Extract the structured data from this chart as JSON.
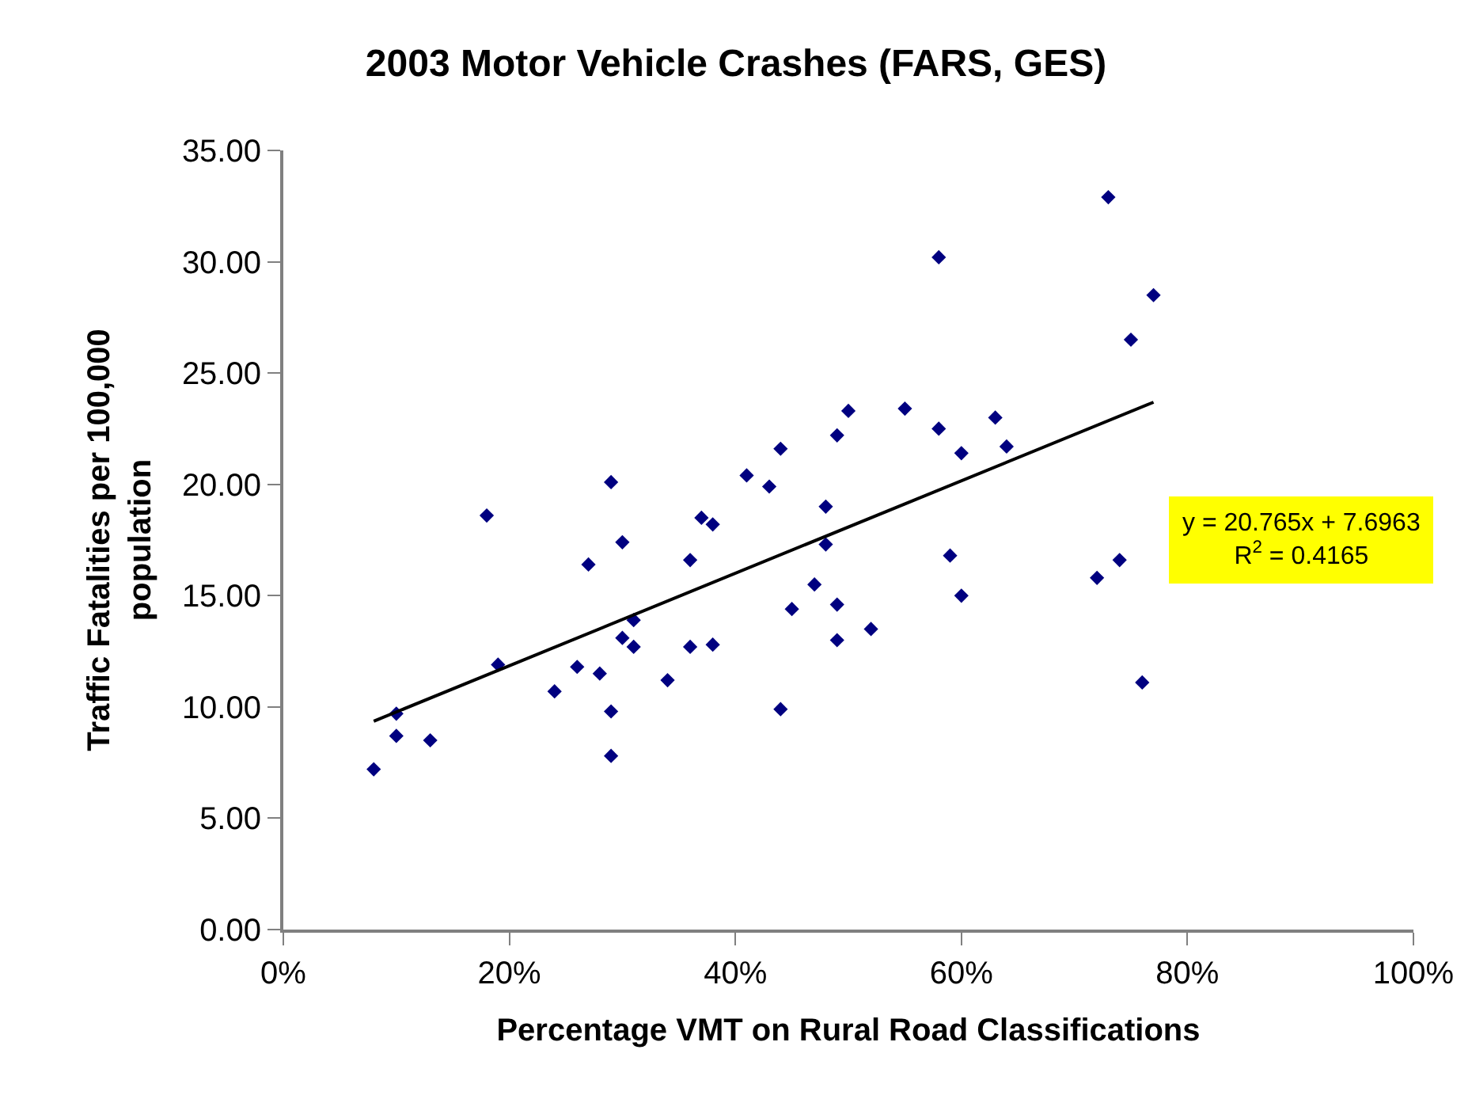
{
  "chart_data": {
    "type": "scatter",
    "title": "2003 Motor Vehicle Crashes (FARS, GES)",
    "xlabel": "Percentage VMT on Rural Road Classifications",
    "ylabel": "Traffic Fatalities per 100,000 population",
    "xlim": [
      0,
      1
    ],
    "xticks": [
      {
        "value": 0,
        "label": "0%"
      },
      {
        "value": 0.2,
        "label": "20%"
      },
      {
        "value": 0.4,
        "label": "40%"
      },
      {
        "value": 0.6,
        "label": "60%"
      },
      {
        "value": 0.8,
        "label": "80%"
      },
      {
        "value": 1,
        "label": "100%"
      }
    ],
    "ylim": [
      0,
      35
    ],
    "yticks": [
      {
        "value": 0,
        "label": "0.00"
      },
      {
        "value": 5,
        "label": "5.00"
      },
      {
        "value": 10,
        "label": "10.00"
      },
      {
        "value": 15,
        "label": "15.00"
      },
      {
        "value": 20,
        "label": "20.00"
      },
      {
        "value": 25,
        "label": "25.00"
      },
      {
        "value": 30,
        "label": "30.00"
      },
      {
        "value": 35,
        "label": "35.00"
      }
    ],
    "grid": false,
    "legend": false,
    "series": [
      {
        "marker": "diamond",
        "color": "#000080",
        "x": [
          0.08,
          0.1,
          0.1,
          0.13,
          0.18,
          0.19,
          0.24,
          0.26,
          0.27,
          0.28,
          0.29,
          0.29,
          0.29,
          0.3,
          0.3,
          0.31,
          0.31,
          0.34,
          0.36,
          0.36,
          0.37,
          0.38,
          0.38,
          0.41,
          0.43,
          0.44,
          0.44,
          0.45,
          0.47,
          0.48,
          0.48,
          0.49,
          0.49,
          0.49,
          0.5,
          0.52,
          0.55,
          0.58,
          0.58,
          0.59,
          0.6,
          0.6,
          0.63,
          0.64,
          0.72,
          0.73,
          0.74,
          0.75,
          0.76,
          0.77
        ],
        "values": [
          7.2,
          9.7,
          8.7,
          8.5,
          18.6,
          11.9,
          10.7,
          11.8,
          16.4,
          11.5,
          20.1,
          9.8,
          7.8,
          17.4,
          13.1,
          13.9,
          12.7,
          11.2,
          16.6,
          12.7,
          18.5,
          18.2,
          12.8,
          20.4,
          19.9,
          21.6,
          9.9,
          14.4,
          15.5,
          19.0,
          17.3,
          22.2,
          14.6,
          13.0,
          23.3,
          13.5,
          23.4,
          30.2,
          22.5,
          16.8,
          21.4,
          15.0,
          23.0,
          21.7,
          15.8,
          32.9,
          16.6,
          26.5,
          11.1,
          28.5
        ]
      },
      {
        "type": "line",
        "marker": "none",
        "color": "#000000",
        "line_style": "solid",
        "x": [
          0.08,
          0.77
        ],
        "values": [
          9.36,
          23.69
        ]
      }
    ],
    "annotations": [
      "y = 20.765x + 7.6963",
      "R$^{2}$ = 0.4165"
    ]
  }
}
